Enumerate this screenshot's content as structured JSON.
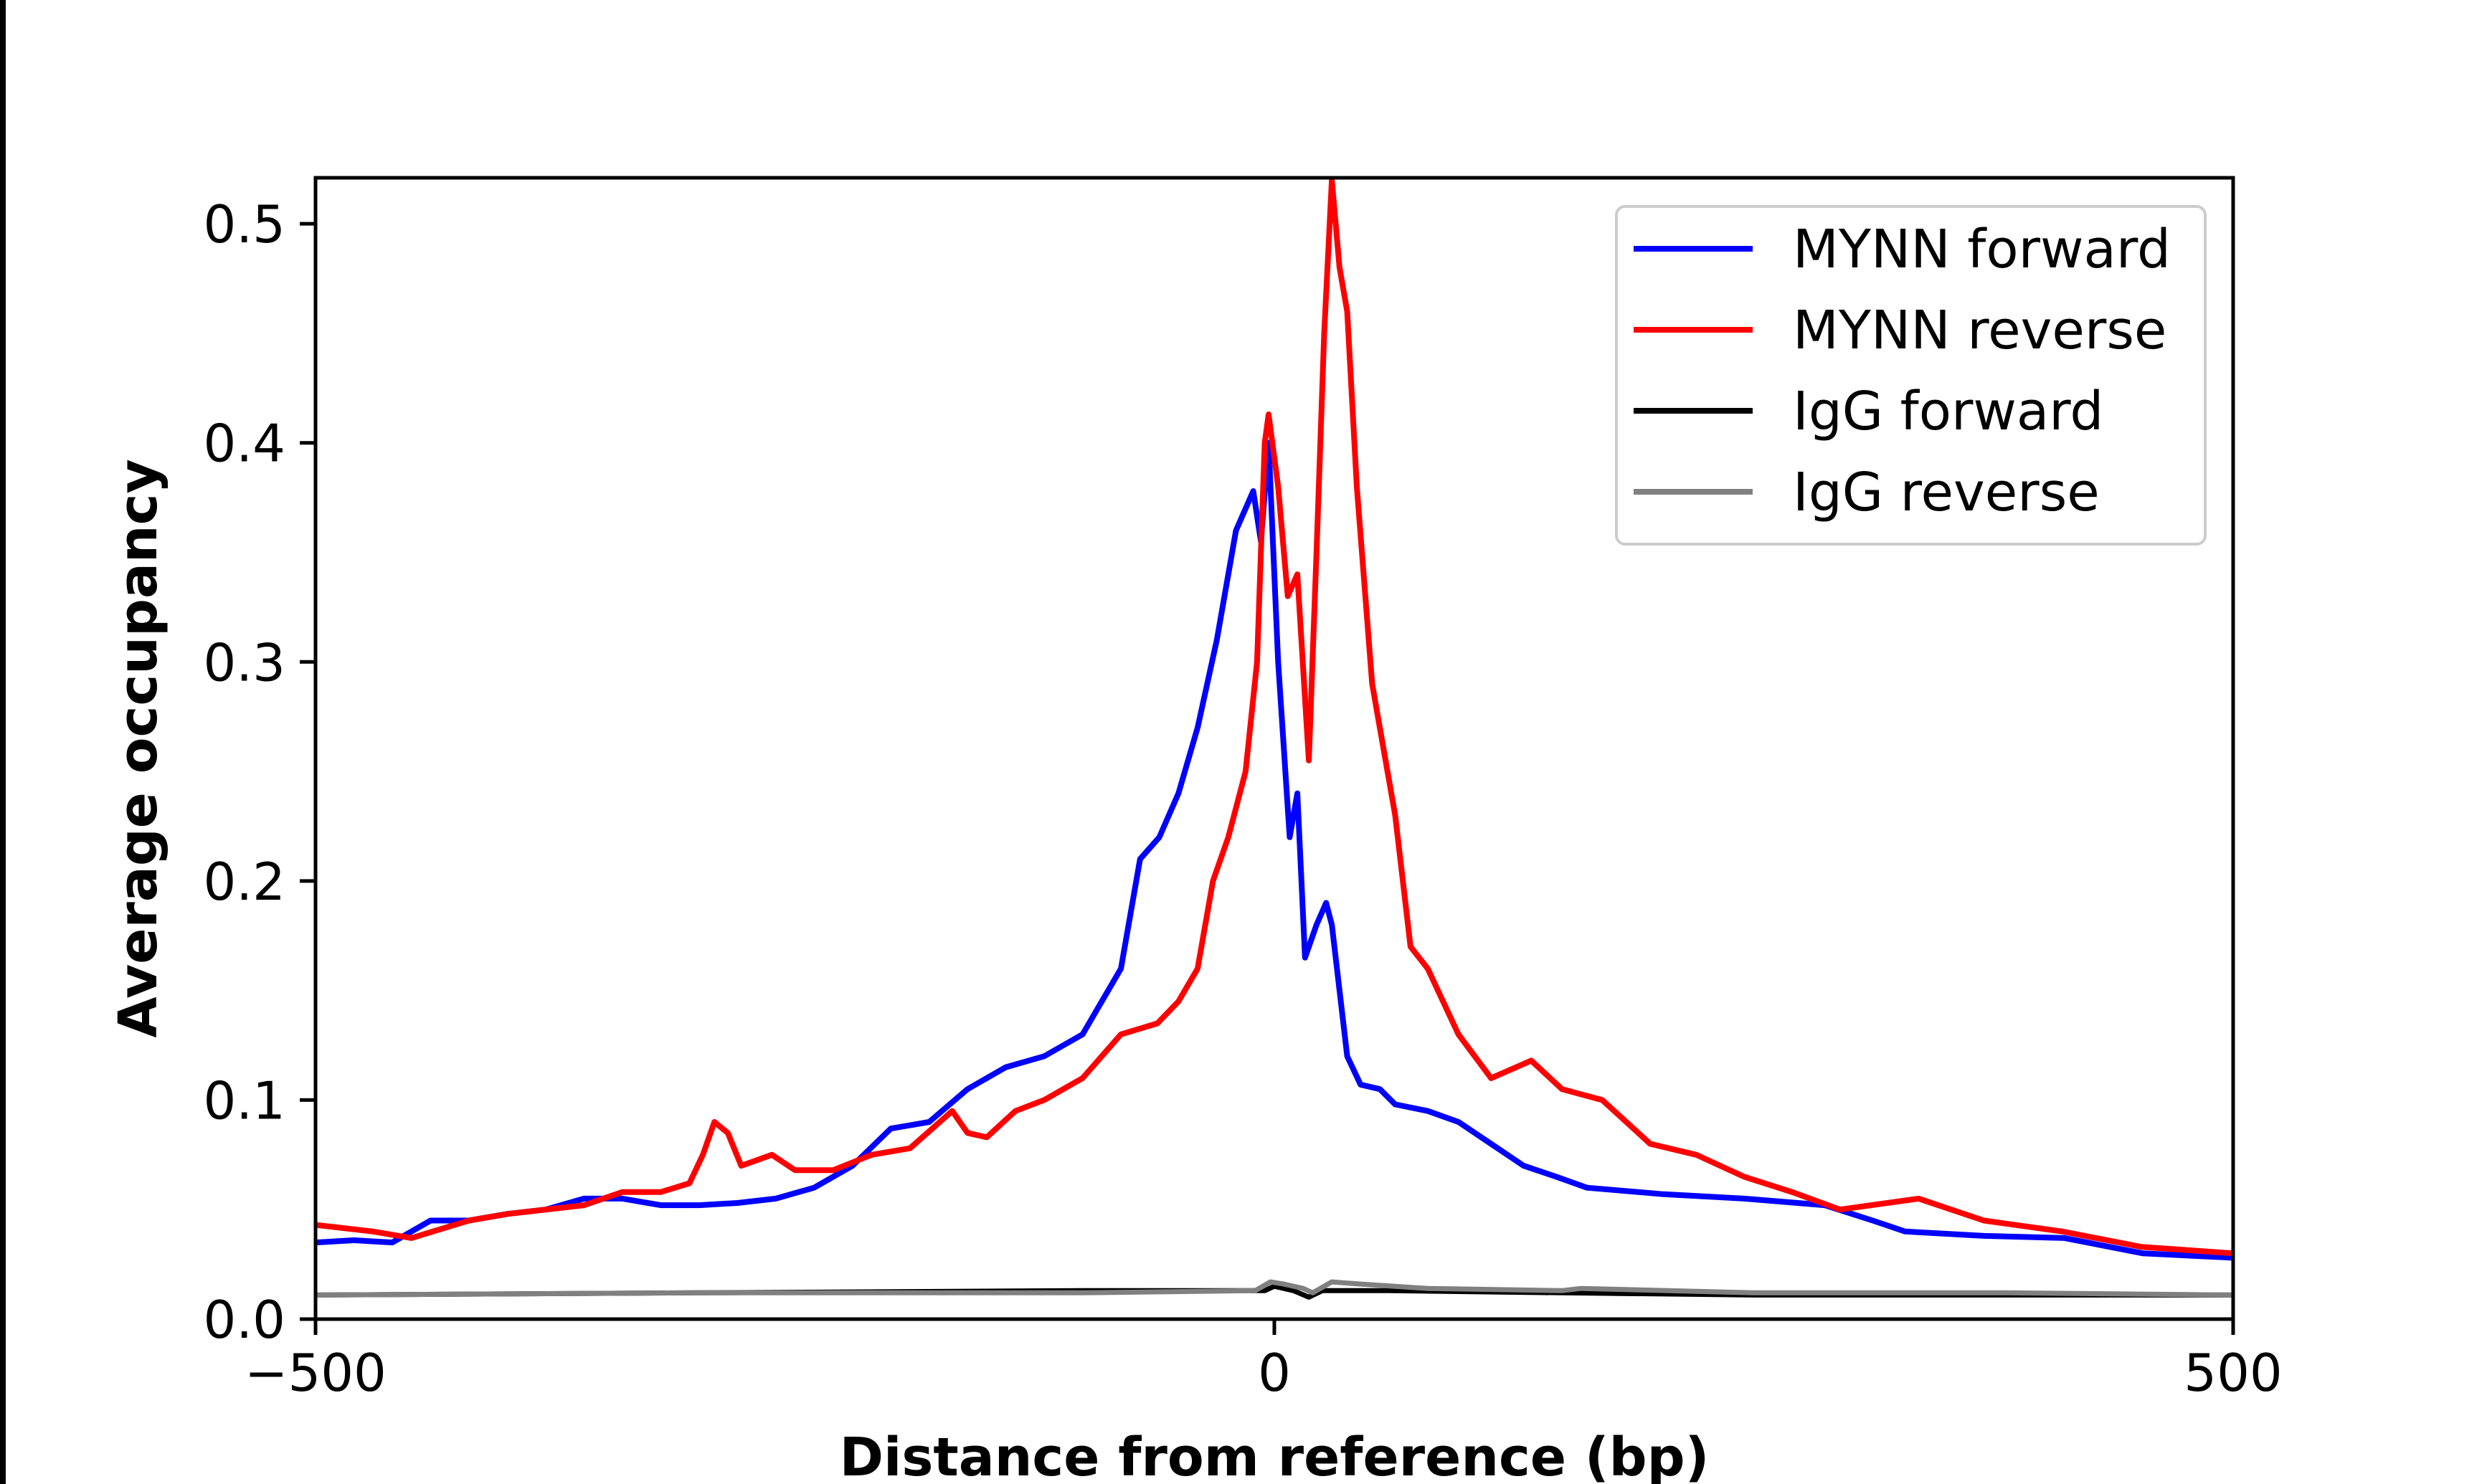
{
  "chart_data": {
    "type": "line",
    "title": "",
    "xlabel": "Distance from reference (bp)",
    "ylabel": "Average occupancy",
    "xlim": [
      -500,
      500
    ],
    "ylim": [
      0,
      0.521
    ],
    "xticks": [
      -500,
      0,
      500
    ],
    "xtick_labels": [
      "−500",
      "0",
      "500"
    ],
    "yticks": [
      0.0,
      0.1,
      0.2,
      0.3,
      0.4,
      0.5
    ],
    "ytick_labels": [
      "0.0",
      "0.1",
      "0.2",
      "0.3",
      "0.4",
      "0.5"
    ],
    "grid": false,
    "legend_position": "top-right",
    "series": [
      {
        "name": "MYNN forward",
        "color": "#0000ff",
        "points": [
          [
            -500,
            0.035
          ],
          [
            -480,
            0.036
          ],
          [
            -460,
            0.035
          ],
          [
            -440,
            0.045
          ],
          [
            -420,
            0.045
          ],
          [
            -400,
            0.048
          ],
          [
            -380,
            0.05
          ],
          [
            -360,
            0.055
          ],
          [
            -340,
            0.055
          ],
          [
            -320,
            0.052
          ],
          [
            -300,
            0.052
          ],
          [
            -280,
            0.053
          ],
          [
            -260,
            0.055
          ],
          [
            -240,
            0.06
          ],
          [
            -220,
            0.07
          ],
          [
            -200,
            0.087
          ],
          [
            -180,
            0.09
          ],
          [
            -160,
            0.105
          ],
          [
            -140,
            0.115
          ],
          [
            -120,
            0.12
          ],
          [
            -100,
            0.13
          ],
          [
            -80,
            0.16
          ],
          [
            -70,
            0.21
          ],
          [
            -60,
            0.22
          ],
          [
            -50,
            0.24
          ],
          [
            -40,
            0.27
          ],
          [
            -30,
            0.31
          ],
          [
            -20,
            0.36
          ],
          [
            -11,
            0.378
          ],
          [
            -7,
            0.355
          ],
          [
            -3,
            0.4
          ],
          [
            2,
            0.3
          ],
          [
            8,
            0.22
          ],
          [
            12,
            0.24
          ],
          [
            16,
            0.165
          ],
          [
            22,
            0.18
          ],
          [
            27,
            0.19
          ],
          [
            30,
            0.18
          ],
          [
            38,
            0.12
          ],
          [
            45,
            0.107
          ],
          [
            55,
            0.105
          ],
          [
            63,
            0.098
          ],
          [
            80,
            0.095
          ],
          [
            96,
            0.09
          ],
          [
            113,
            0.08
          ],
          [
            130,
            0.07
          ],
          [
            147,
            0.065
          ],
          [
            163,
            0.06
          ],
          [
            203,
            0.057
          ],
          [
            245,
            0.055
          ],
          [
            287,
            0.052
          ],
          [
            312,
            0.045
          ],
          [
            329,
            0.04
          ],
          [
            370,
            0.038
          ],
          [
            412,
            0.037
          ],
          [
            453,
            0.03
          ],
          [
            500,
            0.028
          ]
        ]
      },
      {
        "name": "MYNN reverse",
        "color": "#ff0000",
        "points": [
          [
            -500,
            0.043
          ],
          [
            -470,
            0.04
          ],
          [
            -450,
            0.037
          ],
          [
            -420,
            0.045
          ],
          [
            -400,
            0.048
          ],
          [
            -380,
            0.05
          ],
          [
            -360,
            0.052
          ],
          [
            -340,
            0.058
          ],
          [
            -320,
            0.058
          ],
          [
            -305,
            0.062
          ],
          [
            -298,
            0.075
          ],
          [
            -292,
            0.09
          ],
          [
            -285,
            0.085
          ],
          [
            -278,
            0.07
          ],
          [
            -262,
            0.075
          ],
          [
            -250,
            0.068
          ],
          [
            -230,
            0.068
          ],
          [
            -210,
            0.075
          ],
          [
            -190,
            0.078
          ],
          [
            -168,
            0.095
          ],
          [
            -160,
            0.085
          ],
          [
            -150,
            0.083
          ],
          [
            -135,
            0.095
          ],
          [
            -120,
            0.1
          ],
          [
            -100,
            0.11
          ],
          [
            -80,
            0.13
          ],
          [
            -61,
            0.135
          ],
          [
            -50,
            0.145
          ],
          [
            -40,
            0.16
          ],
          [
            -32,
            0.2
          ],
          [
            -24,
            0.22
          ],
          [
            -15,
            0.25
          ],
          [
            -9,
            0.3
          ],
          [
            -5,
            0.4
          ],
          [
            -3,
            0.413
          ],
          [
            2,
            0.38
          ],
          [
            7,
            0.33
          ],
          [
            12,
            0.34
          ],
          [
            18,
            0.255
          ],
          [
            22,
            0.35
          ],
          [
            26,
            0.45
          ],
          [
            30,
            0.52
          ],
          [
            34,
            0.48
          ],
          [
            38,
            0.46
          ],
          [
            43,
            0.38
          ],
          [
            51,
            0.29
          ],
          [
            63,
            0.23
          ],
          [
            71,
            0.17
          ],
          [
            80,
            0.16
          ],
          [
            96,
            0.13
          ],
          [
            113,
            0.11
          ],
          [
            134,
            0.118
          ],
          [
            150,
            0.105
          ],
          [
            171,
            0.1
          ],
          [
            196,
            0.08
          ],
          [
            220,
            0.075
          ],
          [
            245,
            0.065
          ],
          [
            270,
            0.058
          ],
          [
            295,
            0.05
          ],
          [
            336,
            0.055
          ],
          [
            370,
            0.045
          ],
          [
            411,
            0.04
          ],
          [
            452,
            0.033
          ],
          [
            500,
            0.03
          ]
        ]
      },
      {
        "name": "IgG forward",
        "color": "#000000",
        "points": [
          [
            -500,
            0.011
          ],
          [
            -300,
            0.012
          ],
          [
            -100,
            0.013
          ],
          [
            -5,
            0.013
          ],
          [
            0,
            0.015
          ],
          [
            10,
            0.013
          ],
          [
            18,
            0.01
          ],
          [
            25,
            0.013
          ],
          [
            60,
            0.013
          ],
          [
            150,
            0.012
          ],
          [
            250,
            0.011
          ],
          [
            400,
            0.011
          ],
          [
            500,
            0.011
          ]
        ]
      },
      {
        "name": "IgG reverse",
        "color": "#808080",
        "points": [
          [
            -500,
            0.011
          ],
          [
            -300,
            0.012
          ],
          [
            -100,
            0.012
          ],
          [
            -10,
            0.013
          ],
          [
            -2,
            0.017
          ],
          [
            5,
            0.016
          ],
          [
            15,
            0.014
          ],
          [
            20,
            0.012
          ],
          [
            30,
            0.017
          ],
          [
            45,
            0.016
          ],
          [
            80,
            0.014
          ],
          [
            150,
            0.013
          ],
          [
            160,
            0.014
          ],
          [
            250,
            0.012
          ],
          [
            380,
            0.012
          ],
          [
            500,
            0.011
          ]
        ]
      }
    ]
  }
}
